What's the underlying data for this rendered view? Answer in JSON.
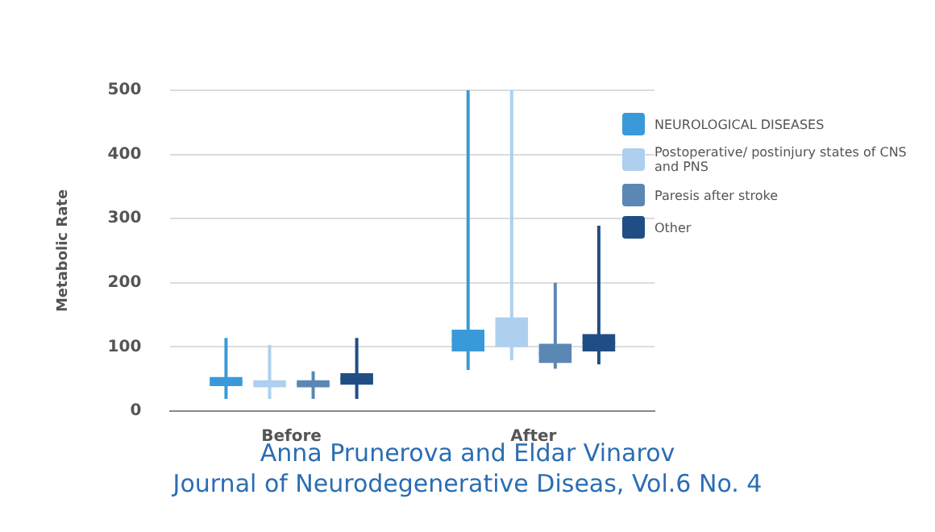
{
  "chart_data": {
    "type": "box",
    "ylabel": "Metabolic Rate",
    "categories": [
      "Before",
      "After"
    ],
    "ylim": [
      0,
      500
    ],
    "yticks": [
      0,
      100,
      200,
      300,
      400,
      500
    ],
    "grid": "y",
    "legend": "right",
    "series": [
      {
        "name": "NEUROLOGICAL DISEASES",
        "color": "#3a9ad9",
        "boxes": [
          {
            "low": 19,
            "q1": 39,
            "median": 46,
            "q3": 53,
            "high": 114
          },
          {
            "low": 64,
            "q1": 93,
            "median": 110,
            "q3": 127,
            "high": 500
          }
        ]
      },
      {
        "name": "Postoperative/ postinjury states of CNS and PNS",
        "color": "#aed0ee",
        "boxes": [
          {
            "low": 19,
            "q1": 37,
            "median": 42,
            "q3": 48,
            "high": 103
          },
          {
            "low": 79,
            "q1": 100,
            "median": 123,
            "q3": 146,
            "high": 500
          }
        ]
      },
      {
        "name": "Paresis after stroke",
        "color": "#5b87b5",
        "boxes": [
          {
            "low": 19,
            "q1": 37,
            "median": 42,
            "q3": 48,
            "high": 62
          },
          {
            "low": 66,
            "q1": 75,
            "median": 90,
            "q3": 105,
            "high": 200
          }
        ]
      },
      {
        "name": "Other",
        "color": "#1f4e85",
        "boxes": [
          {
            "low": 19,
            "q1": 41,
            "median": 50,
            "q3": 59,
            "high": 114
          },
          {
            "low": 73,
            "q1": 93,
            "median": 106,
            "q3": 120,
            "high": 289
          }
        ]
      }
    ],
    "annotations": [
      "Anna Prunerova and Eldar Vinarov",
      "Journal of Neurodegenerative Diseas, Vol.6 No. 4"
    ]
  }
}
